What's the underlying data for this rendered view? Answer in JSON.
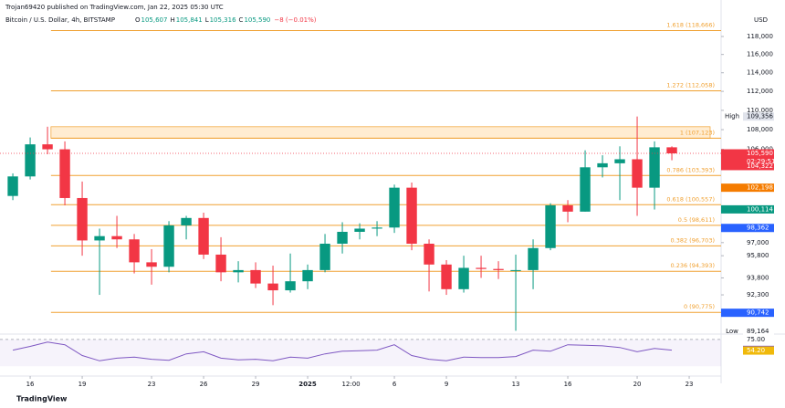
{
  "chart_data": {
    "type": "candlestick",
    "publisher": "Trojan69420 published on TradingView.com, Jan 22, 2025 05:30 UTC",
    "title": "Bitcoin / U.S. Dollar, 4h, BITSTAMP",
    "ohlc_legend": [
      {
        "key": "O",
        "value": "105,607"
      },
      {
        "key": "H",
        "value": "105,841"
      },
      {
        "key": "L",
        "value": "105,316"
      },
      {
        "key": "C",
        "value": "105,590"
      },
      {
        "key": "",
        "value": "−8 (−0.01%)"
      }
    ],
    "currency": "USD",
    "footer": "TradingView",
    "log_scale": true,
    "up_color": "#089981",
    "down_color": "#f23645",
    "x": [
      -1,
      0,
      1,
      2,
      3,
      4,
      5,
      6,
      7,
      8,
      9,
      10,
      11,
      12,
      13,
      14,
      15,
      16,
      17,
      18,
      19,
      20,
      21,
      22,
      23,
      24,
      25,
      26,
      27,
      28,
      29,
      30,
      31,
      32,
      33,
      34,
      35,
      36,
      37
    ],
    "open": [
      101400,
      103300,
      106500,
      106000,
      101200,
      97200,
      97600,
      97300,
      95200,
      94800,
      98600,
      99300,
      95900,
      94300,
      94500,
      93300,
      92700,
      93500,
      94500,
      96900,
      98000,
      98300,
      98400,
      102200,
      96900,
      95000,
      92800,
      94700,
      94600,
      94500,
      94500,
      96500,
      100500,
      99900,
      104200,
      104600,
      105000,
      102200,
      106200
    ],
    "high": [
      103600,
      107200,
      108300,
      106800,
      102800,
      98300,
      99500,
      97800,
      96400,
      99000,
      99500,
      99800,
      97500,
      95300,
      95200,
      94900,
      96000,
      95000,
      97800,
      98900,
      98800,
      99000,
      102500,
      102700,
      97300,
      95400,
      95800,
      95800,
      95300,
      95900,
      97300,
      100700,
      101000,
      105900,
      105400,
      106300,
      109356,
      106800,
      106300
    ],
    "low": [
      101000,
      103000,
      105500,
      100500,
      95800,
      92300,
      96500,
      94200,
      93200,
      94300,
      97300,
      95500,
      93500,
      93400,
      92900,
      91400,
      92500,
      92800,
      94300,
      96000,
      97300,
      97600,
      97900,
      96300,
      92600,
      92300,
      92500,
      93800,
      93700,
      89200,
      92800,
      96300,
      98900,
      99900,
      103200,
      101000,
      99500,
      100100,
      104900
    ],
    "close": [
      103300,
      106500,
      106000,
      101200,
      97200,
      97600,
      97300,
      95200,
      94800,
      98600,
      99300,
      95900,
      94300,
      94500,
      93300,
      92700,
      93500,
      94500,
      96900,
      98000,
      98300,
      98400,
      102200,
      96900,
      95000,
      92800,
      94700,
      94600,
      94500,
      94500,
      96500,
      100500,
      99900,
      104200,
      104600,
      105000,
      102200,
      106200,
      105590
    ],
    "rsi": [
      55,
      62,
      70,
      65,
      45,
      35,
      40,
      42,
      38,
      36,
      48,
      52,
      40,
      37,
      38,
      35,
      42,
      40,
      48,
      53,
      54,
      55,
      65,
      45,
      38,
      35,
      42,
      41,
      41,
      43,
      55,
      53,
      65,
      64,
      63,
      60,
      52,
      58,
      55
    ],
    "rsi_color": "#7e57c2",
    "rsi_ylim": [
      10,
      85
    ],
    "rsi_ticks": [
      {
        "value": 75,
        "label": "75.00"
      }
    ],
    "rsi_tags": [
      {
        "value": 55.49,
        "label": "55.49",
        "color": "#7e57c2"
      },
      {
        "value": 54.2,
        "label": "54.20",
        "color": "#f0b90b"
      }
    ],
    "xlim": [
      -1.74,
      39.84
    ],
    "xticks": [
      {
        "value": 0,
        "label": "16"
      },
      {
        "value": 3,
        "label": "19"
      },
      {
        "value": 7,
        "label": "23"
      },
      {
        "value": 10,
        "label": "26"
      },
      {
        "value": 13,
        "label": "29"
      },
      {
        "value": 16,
        "label": "2025"
      },
      {
        "value": 18.5,
        "label": "12:00"
      },
      {
        "value": 21,
        "label": "6"
      },
      {
        "value": 24,
        "label": "9"
      },
      {
        "value": 28,
        "label": "13"
      },
      {
        "value": 31,
        "label": "16"
      },
      {
        "value": 35,
        "label": "20"
      },
      {
        "value": 38,
        "label": "23"
      }
    ],
    "ylim": [
      89000,
      121320
    ],
    "yticks": [
      {
        "value": 118000,
        "label": "118,000"
      },
      {
        "value": 116000,
        "label": "116,000"
      },
      {
        "value": 114000,
        "label": "114,000"
      },
      {
        "value": 112000,
        "label": "112,000"
      },
      {
        "value": 110000,
        "label": "110,000"
      },
      {
        "value": 108000,
        "label": "108,000"
      },
      {
        "value": 106000,
        "label": "106,000"
      },
      {
        "value": 97000,
        "label": "97,000"
      },
      {
        "value": 95800,
        "label": "95,800"
      },
      {
        "value": 93800,
        "label": "93,800"
      },
      {
        "value": 92300,
        "label": "92,300"
      }
    ],
    "fib_color": "#f0a030",
    "fib_start": 1.2,
    "fib_levels": [
      {
        "value": 118666,
        "label": "1.618 (118,666)"
      },
      {
        "value": 112058,
        "label": "1.272 (112,058)"
      },
      {
        "value": 107123,
        "label": "1 (107,123)"
      },
      {
        "value": 103393,
        "label": "0.786 (103,393)"
      },
      {
        "value": 100557,
        "label": "0.618 (100,557)"
      },
      {
        "value": 98611,
        "label": "0.5 (98,611)"
      },
      {
        "value": 96703,
        "label": "0.382 (96,703)"
      },
      {
        "value": 94393,
        "label": "0.236 (94,393)"
      },
      {
        "value": 90775,
        "label": "0 (90,775)"
      }
    ],
    "zone": [
      107123,
      108300
    ],
    "price_tags": [
      {
        "value": 105590,
        "label": "105,590",
        "color": "#f23645"
      },
      {
        "value": 104322,
        "label": "104,322",
        "color": "#f23645"
      },
      {
        "value": 102198,
        "label": "102,198",
        "color": "#f57c00"
      },
      {
        "value": 100114,
        "label": "100,114",
        "color": "#089981"
      },
      {
        "value": 98362,
        "label": "98,362",
        "color": "#2962ff"
      },
      {
        "value": 90742,
        "label": "90,742",
        "color": "#2962ff"
      }
    ],
    "countdown": "02:29:51",
    "high_mark": {
      "name": "High",
      "value": 109356,
      "label": "109,356"
    },
    "low_mark": {
      "name": "Low",
      "value": 89164,
      "label": "89,164"
    }
  }
}
